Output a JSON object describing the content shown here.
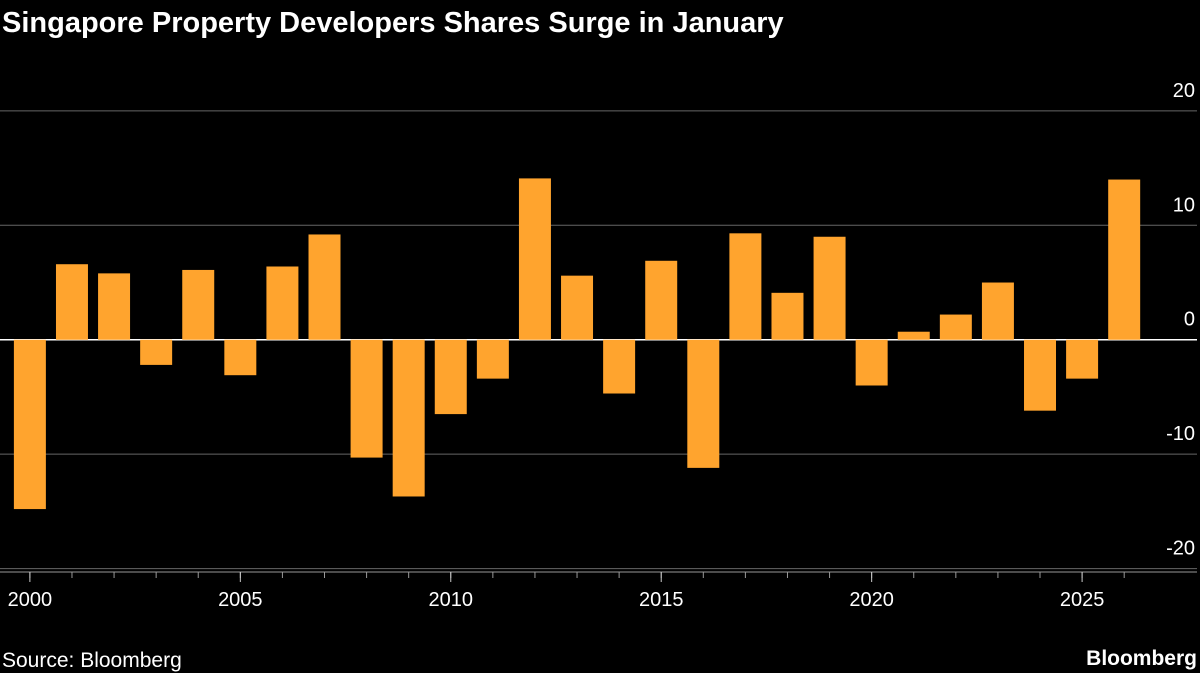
{
  "chart_data": {
    "type": "bar",
    "title": "Singapore Property Developers Shares Surge in January",
    "source": "Source: Bloomberg",
    "brand": "Bloomberg",
    "x": [
      2000,
      2001,
      2002,
      2003,
      2004,
      2005,
      2006,
      2007,
      2008,
      2009,
      2010,
      2011,
      2012,
      2013,
      2014,
      2015,
      2016,
      2017,
      2018,
      2019,
      2020,
      2021,
      2022,
      2023,
      2024,
      2025,
      2026
    ],
    "values": [
      -14.8,
      6.6,
      5.8,
      -2.2,
      6.1,
      -3.1,
      6.4,
      9.2,
      -10.3,
      -13.7,
      -6.5,
      -3.4,
      14.1,
      5.6,
      -4.7,
      6.9,
      -11.2,
      9.3,
      4.1,
      9.0,
      -4.0,
      0.7,
      2.2,
      5.0,
      -6.2,
      -3.4,
      14.0
    ],
    "color": "#ffa42e",
    "xlim": [
      1999.29,
      2027.73
    ],
    "xticks": [
      2000,
      2005,
      2010,
      2015,
      2020,
      2025
    ],
    "ylim": [
      -20.3,
      22.7
    ],
    "yticks": [
      -20,
      -10,
      0,
      10,
      20
    ],
    "grid": true
  }
}
